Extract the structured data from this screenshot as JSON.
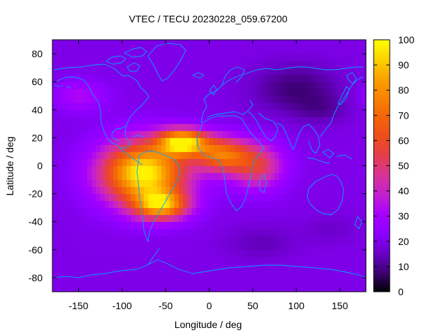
{
  "chart_data": {
    "type": "heatmap",
    "title": "VTEC / TECU 20230228_059.67200",
    "xlabel": "Longitude / deg",
    "ylabel": "Latitude / deg",
    "xlim": [
      -180,
      180
    ],
    "ylim": [
      -90,
      90
    ],
    "x_ticks": [
      -150,
      -100,
      -50,
      0,
      50,
      100,
      150
    ],
    "y_ticks": [
      80,
      60,
      40,
      20,
      0,
      -20,
      -40,
      -60,
      -80
    ],
    "colorbar": {
      "min": 0,
      "max": 100,
      "ticks": [
        100,
        90,
        80,
        70,
        60,
        50,
        40,
        30,
        20,
        10,
        0
      ],
      "palette": [
        "#000000",
        "#3d0073",
        "#6a00c8",
        "#8c00ff",
        "#a600ff",
        "#c41fd0",
        "#d8329a",
        "#e53d4e",
        "#ee4c1c",
        "#f46408",
        "#f88200",
        "#fba100",
        "#ffd200",
        "#ffff00"
      ]
    },
    "grid_resolution_deg": 5,
    "background_vtec": 20,
    "features": [
      {
        "name": "equatorial anomaly core",
        "lon": -75,
        "lat": -5,
        "peak_vtec": 92,
        "lon_half_width": 48,
        "lat_half_width": 22
      },
      {
        "name": "northern crest",
        "lon": -30,
        "lat": 17,
        "peak_vtec": 85,
        "lon_half_width": 28,
        "lat_half_width": 9
      },
      {
        "name": "african extension",
        "lon": 15,
        "lat": 8,
        "peak_vtec": 62,
        "lon_half_width": 30,
        "lat_half_width": 12
      },
      {
        "name": "indian ocean tail",
        "lon": 55,
        "lat": 0,
        "peak_vtec": 45,
        "lon_half_width": 30,
        "lat_half_width": 16
      },
      {
        "name": "southern crest",
        "lon": -55,
        "lat": -28,
        "peak_vtec": 70,
        "lon_half_width": 30,
        "lat_half_width": 10
      },
      {
        "name": "north pacific band",
        "lon": -150,
        "lat": 50,
        "peak_vtec": 25,
        "lon_half_width": 30,
        "lat_half_width": 10
      },
      {
        "name": "siberian trough",
        "lon": 100,
        "lat": 55,
        "peak_vtec": -12,
        "lon_half_width": 50,
        "lat_half_width": 18
      },
      {
        "name": "east asia trough",
        "lon": 130,
        "lat": 40,
        "peak_vtec": -6,
        "lon_half_width": 30,
        "lat_half_width": 10
      },
      {
        "name": "south indian trough",
        "lon": 60,
        "lat": -55,
        "peak_vtec": -6,
        "lon_half_width": 40,
        "lat_half_width": 12
      },
      {
        "name": "australian trough",
        "lon": 140,
        "lat": -45,
        "peak_vtec": -4,
        "lon_half_width": 30,
        "lat_half_width": 10
      }
    ]
  }
}
